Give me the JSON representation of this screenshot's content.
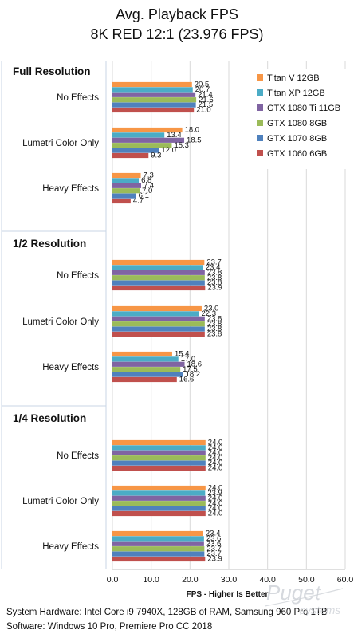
{
  "chart_data": {
    "type": "bar",
    "orientation": "horizontal",
    "title": "Avg. Playback FPS",
    "subtitle": "8K RED 12:1 (23.976 FPS)",
    "xlabel": "FPS - Higher Is Better",
    "xlim": [
      0,
      60
    ],
    "xticks": [
      "0.0",
      "10.0",
      "20.0",
      "30.0",
      "40.0",
      "50.0",
      "60.0"
    ],
    "grid": true,
    "legend_position": "top-right",
    "series": [
      {
        "name": "Titan V 12GB",
        "color": "#F79646"
      },
      {
        "name": "Titan XP 12GB",
        "color": "#4BACC6"
      },
      {
        "name": "GTX 1080 Ti 11GB",
        "color": "#8064A2"
      },
      {
        "name": "GTX 1080 8GB",
        "color": "#9BBB59"
      },
      {
        "name": "GTX 1070 8GB",
        "color": "#4F81BD"
      },
      {
        "name": "GTX 1060 6GB",
        "color": "#C0504D"
      }
    ],
    "sections": [
      {
        "label": "Full Resolution",
        "groups": [
          {
            "label": "No Effects",
            "values": [
              20.5,
              20.7,
              21.4,
              21.6,
              21.5,
              21.0
            ]
          },
          {
            "label": "Lumetri Color Only",
            "values": [
              18.0,
              13.4,
              18.5,
              15.3,
              12.0,
              9.3
            ]
          },
          {
            "label": "Heavy Effects",
            "values": [
              7.3,
              6.8,
              7.4,
              7.0,
              6.1,
              4.7
            ]
          }
        ]
      },
      {
        "label": "1/2 Resolution",
        "groups": [
          {
            "label": "No Effects",
            "values": [
              23.7,
              23.4,
              23.8,
              23.8,
              23.8,
              23.9
            ]
          },
          {
            "label": "Lumetri Color Only",
            "values": [
              23.0,
              22.3,
              23.8,
              23.8,
              23.8,
              23.8
            ]
          },
          {
            "label": "Heavy Effects",
            "values": [
              15.4,
              17.0,
              18.6,
              17.5,
              18.2,
              16.6
            ]
          }
        ]
      },
      {
        "label": "1/4 Resolution",
        "groups": [
          {
            "label": "No Effects",
            "values": [
              24.0,
              24.0,
              24.0,
              24.0,
              24.0,
              24.0
            ]
          },
          {
            "label": "Lumetri Color Only",
            "values": [
              24.0,
              23.9,
              24.0,
              24.0,
              24.0,
              24.0
            ]
          },
          {
            "label": "Heavy Effects",
            "values": [
              23.4,
              23.6,
              23.6,
              23.7,
              23.7,
              23.9
            ]
          }
        ]
      }
    ]
  },
  "footer": {
    "hardware": "System Hardware: Intel Core i9 7940X, 128GB of RAM, Samsung 960 Pro 1TB",
    "software": "Software: Windows 10 Pro, Premiere Pro CC 2018"
  },
  "watermark": {
    "line1": "Puget",
    "line2": "systems"
  }
}
